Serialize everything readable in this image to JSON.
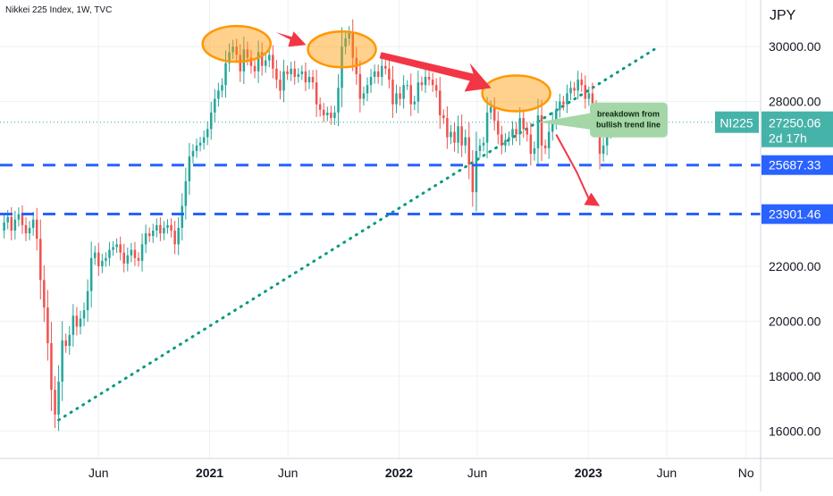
{
  "header": {
    "title": "Nikkei 225 Index, 1W, TVC"
  },
  "chart_data": {
    "type": "candlestick",
    "title": "Nikkei 225 Index, 1W, TVC",
    "currency_label": "JPY",
    "ylim": [
      15000,
      31700
    ],
    "y_ticks": [
      {
        "label": "30000.00",
        "value": 30000
      },
      {
        "label": "28000.00",
        "value": 28000
      },
      {
        "label": "22000.00",
        "value": 22000
      },
      {
        "label": "20000.00",
        "value": 20000
      },
      {
        "label": "18000.00",
        "value": 18000
      },
      {
        "label": "16000.00",
        "value": 16000
      }
    ],
    "x_ticks": [
      {
        "label": "Jun",
        "date": "2020-06-01",
        "bold": false
      },
      {
        "label": "2021",
        "date": "2021-01-01",
        "bold": true
      },
      {
        "label": "Jun",
        "date": "2021-06-01",
        "bold": false
      },
      {
        "label": "2022",
        "date": "2022-01-01",
        "bold": true
      },
      {
        "label": "Jun",
        "date": "2022-06-01",
        "bold": false
      },
      {
        "label": "2023",
        "date": "2023-01-01",
        "bold": true
      },
      {
        "label": "Jun",
        "date": "2023-06-01",
        "bold": false
      },
      {
        "label": "No",
        "date": "2023-11-01",
        "bold": false
      }
    ],
    "x_range": [
      "2019-11-24",
      "2023-11-29"
    ],
    "grid": true,
    "colors": {
      "up": "#26a69a",
      "down": "#ef5350",
      "level": "#2962ff",
      "trend": "#089981",
      "annotation": "#ff9800",
      "arrow": "#f23645",
      "callout": "#a5d6a7"
    },
    "last_price": {
      "symbol": "NI225",
      "value": 27250.06,
      "label": "27250.06",
      "countdown": "2d 17h"
    },
    "levels": [
      {
        "value": 25687.33,
        "label": "25687.33"
      },
      {
        "value": 23901.46,
        "label": "23901.46"
      }
    ],
    "trend_line": {
      "from": {
        "date": "2020-03-16",
        "value": 16400
      },
      "to": {
        "date": "2023-05-08",
        "value": 29900
      }
    },
    "highlighted_peaks": [
      {
        "date": "2021-02-22",
        "value": 30100
      },
      {
        "date": "2021-09-13",
        "value": 29900
      },
      {
        "date": "2022-08-15",
        "value": 28300
      }
    ],
    "annotation": {
      "text": [
        "breakdown from",
        "bullish trend line"
      ]
    },
    "candles_weekly": {
      "start": "2019-12-02",
      "o": [
        23300,
        23600,
        23800,
        23300,
        23700,
        23900,
        23500,
        23200,
        23400,
        23700,
        23000,
        21500,
        20500,
        19200,
        17500,
        16600,
        17800,
        19300,
        19100,
        19500,
        20200,
        19800,
        20100,
        20400,
        21100,
        22300,
        22500,
        22000,
        22200,
        22300,
        22600,
        22700,
        22800,
        22500,
        22100,
        22400,
        22600,
        22300,
        22200,
        22800,
        23200,
        23100,
        23300,
        23500,
        23200,
        23400,
        23500,
        23300,
        22800,
        23400,
        24200,
        25100,
        26000,
        26200,
        26400,
        26500,
        26700,
        27000,
        27600,
        28100,
        28400,
        28600,
        29400,
        29800,
        30000,
        29700,
        29100,
        29900,
        29600,
        29300,
        29100,
        29800,
        29300,
        29500,
        29700,
        29200,
        28800,
        28400,
        29100,
        29000,
        29200,
        28900,
        29000,
        29100,
        28700,
        28900,
        28700,
        27900,
        27700,
        27500,
        27600,
        27400,
        27600,
        28500,
        30000,
        30300,
        30500,
        29600,
        29000,
        28100,
        28300,
        28600,
        28900,
        29100,
        28900,
        29300,
        29200,
        28800,
        27900,
        28300,
        28100,
        28600,
        28600,
        27900,
        28000,
        28700,
        28600,
        28900,
        28800,
        28600,
        28400,
        27500,
        27400,
        26700,
        26900,
        26500,
        27100,
        26400,
        26700,
        25700,
        24700,
        26200,
        26400,
        26500,
        27600,
        27800,
        27300,
        26800,
        26400,
        26600,
        26700,
        27000,
        26800,
        27400,
        27000,
        26800,
        26100,
        26300,
        27500,
        26400,
        26300,
        26900,
        27300,
        27700,
        28000,
        27900,
        28300,
        28500,
        28400,
        28800,
        28600,
        28100,
        28300,
        27700,
        27200,
        26100,
        26400,
        26900,
        27100
      ]
    }
  }
}
